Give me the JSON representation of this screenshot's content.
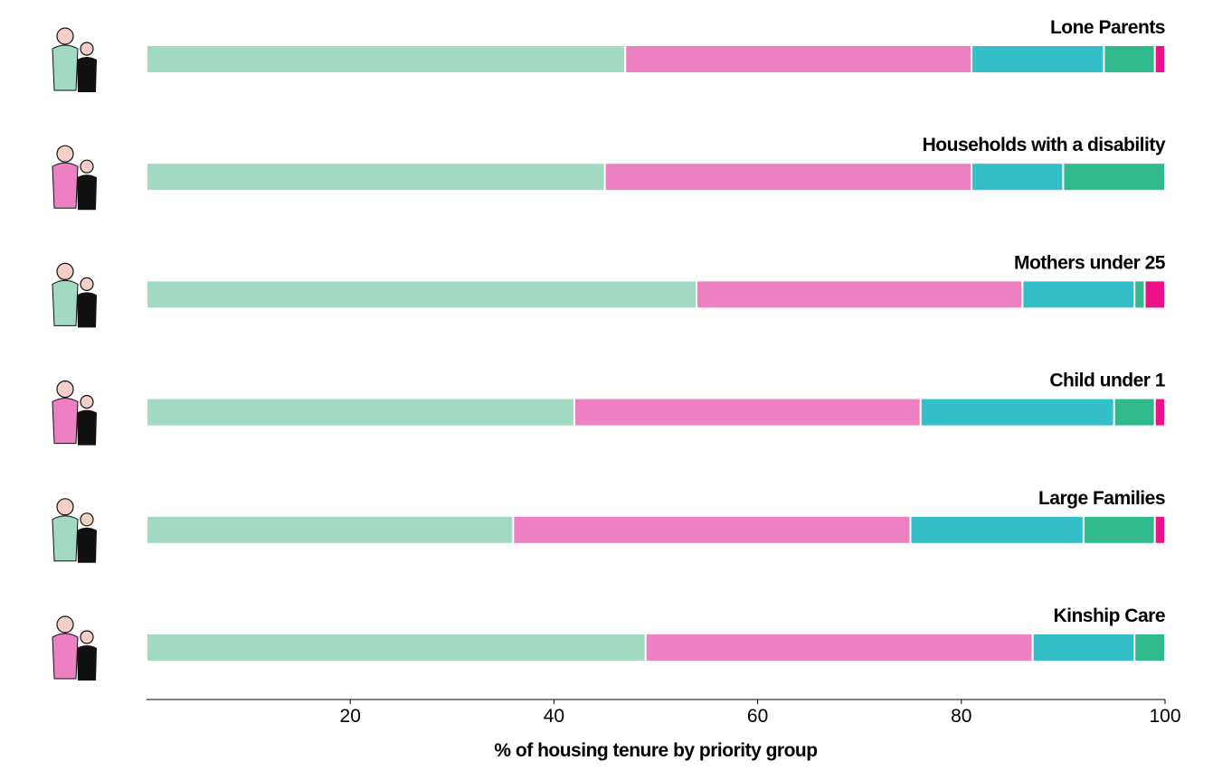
{
  "chart_data": {
    "type": "bar",
    "orientation": "horizontal",
    "stacked": true,
    "xlabel": "% of housing tenure by priority group",
    "xlim": [
      0,
      100
    ],
    "x_ticks": [
      20,
      40,
      60,
      80,
      100
    ],
    "grid": false,
    "legend": "none",
    "categories": [
      "Lone Parents",
      "Households with a disability",
      "Mothers under 25",
      "Child under 1",
      "Large Families",
      "Kinship Care"
    ],
    "segment_colors": [
      "#a1d9c2",
      "#ec80c1",
      "#33bfc8",
      "#2fb98c",
      "#ec1189"
    ],
    "rows": [
      [
        47,
        34,
        13,
        5,
        1
      ],
      [
        45,
        36,
        9,
        10,
        0
      ],
      [
        54,
        32,
        11,
        1,
        2
      ],
      [
        42,
        34,
        19,
        4,
        1
      ],
      [
        36,
        39,
        17,
        7,
        1
      ],
      [
        49,
        38,
        10,
        3,
        0
      ]
    ],
    "icons": [
      "parent-with-baby-icon",
      "family-with-wheelchair-icon",
      "mother-with-pram-icon",
      "mother-with-infant-icon",
      "large-family-icon",
      "grandparents-with-child-icon"
    ]
  }
}
